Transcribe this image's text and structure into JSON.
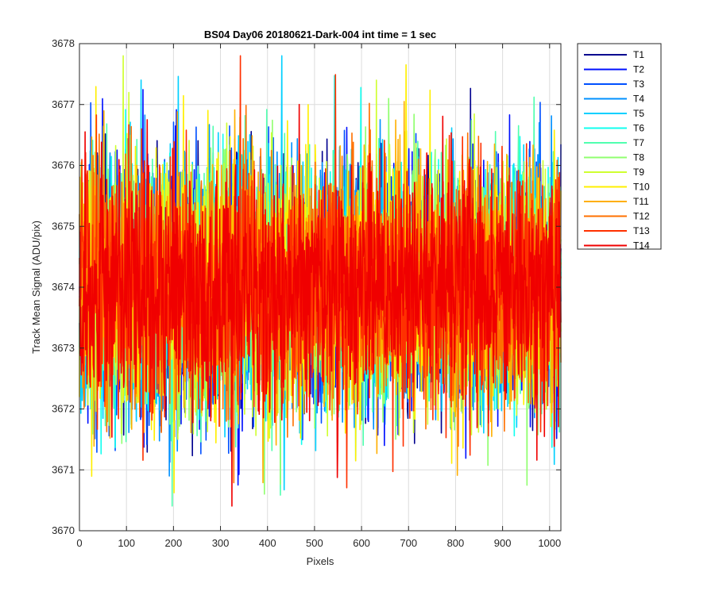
{
  "chart_data": {
    "type": "line",
    "title": "BS04 Day06 20180621-Dark-004 int time = 1 sec",
    "xlabel": "Pixels",
    "ylabel": "Track Mean Signal (ADU/pix)",
    "xlim": [
      0,
      1024
    ],
    "ylim": [
      3670,
      3678
    ],
    "xticks": [
      0,
      100,
      200,
      300,
      400,
      500,
      600,
      700,
      800,
      900,
      1000
    ],
    "yticks": [
      3670,
      3671,
      3672,
      3673,
      3674,
      3675,
      3676,
      3677,
      3678
    ],
    "grid": true,
    "legend_position": "outside-top-right",
    "noise_model": {
      "mean": 3674.0,
      "sigma": 1.0,
      "min": 3670.2,
      "max": 3677.8,
      "num_points": 1024
    },
    "series": [
      {
        "name": "T1",
        "color": "#00008F"
      },
      {
        "name": "T2",
        "color": "#0010FF"
      },
      {
        "name": "T3",
        "color": "#0050FF"
      },
      {
        "name": "T4",
        "color": "#0090FF"
      },
      {
        "name": "T5",
        "color": "#00D0FF"
      },
      {
        "name": "T6",
        "color": "#10FFEF"
      },
      {
        "name": "T7",
        "color": "#50FFAF"
      },
      {
        "name": "T8",
        "color": "#90FF6F"
      },
      {
        "name": "T9",
        "color": "#CFFF30"
      },
      {
        "name": "T10",
        "color": "#FFEF00"
      },
      {
        "name": "T11",
        "color": "#FFAF00"
      },
      {
        "name": "T12",
        "color": "#FF7000"
      },
      {
        "name": "T13",
        "color": "#FF3000"
      },
      {
        "name": "T14",
        "color": "#F00000"
      }
    ]
  }
}
